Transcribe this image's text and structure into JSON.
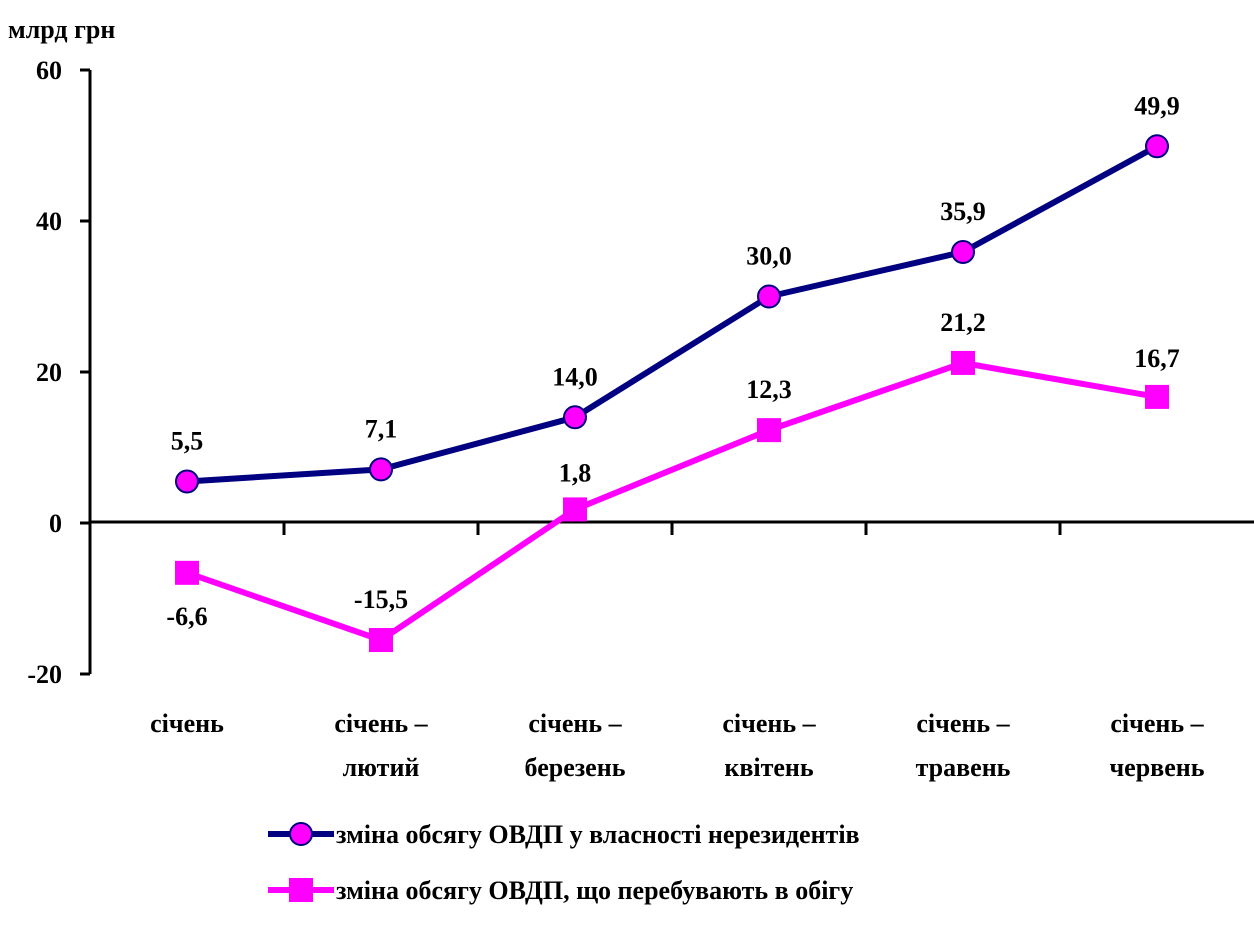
{
  "chart_data": {
    "type": "line",
    "ylabel": "млрд грн",
    "ylim": [
      -20,
      60
    ],
    "yticks": [
      60,
      40,
      20,
      0,
      -20
    ],
    "grid": false,
    "legend_position": "bottom",
    "categories": [
      [
        "січень"
      ],
      [
        "січень –",
        "лютий"
      ],
      [
        "січень –",
        "березень"
      ],
      [
        "січень –",
        "квітень"
      ],
      [
        "січень –",
        "травень"
      ],
      [
        "січень –",
        "червень"
      ]
    ],
    "series": [
      {
        "name": "зміна обсягу ОВДП у власності нерезидентів",
        "values": [
          5.5,
          7.1,
          14.0,
          30.0,
          35.9,
          49.9
        ],
        "labels": [
          "5,5",
          "7,1",
          "14,0",
          "30,0",
          "35,9",
          "49,9"
        ],
        "line_color": "#000080",
        "marker": "circle",
        "marker_color": "#ff00ff"
      },
      {
        "name": "зміна обсягу ОВДП, що перебувають в обігу",
        "values": [
          -6.6,
          -15.5,
          1.8,
          12.3,
          21.2,
          16.7
        ],
        "labels": [
          "-6,6",
          "-15,5",
          "1,8",
          "12,3",
          "21,2",
          "16,7"
        ],
        "line_color": "#ff00ff",
        "marker": "square",
        "marker_color": "#ff00ff"
      }
    ]
  }
}
